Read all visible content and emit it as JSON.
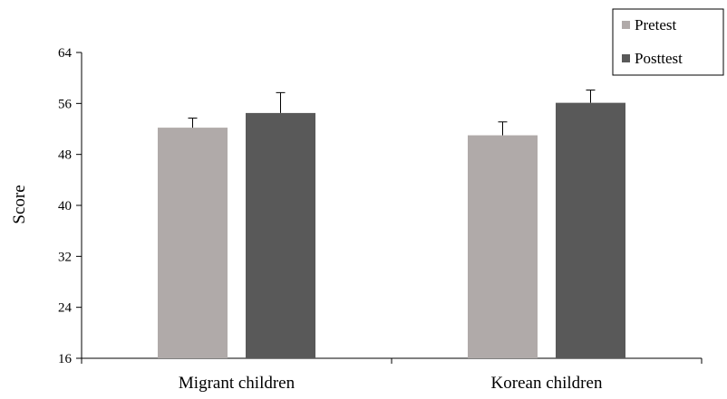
{
  "chart_data": {
    "type": "bar",
    "categories": [
      "Migrant children",
      "Korean children"
    ],
    "series": [
      {
        "name": "Pretest",
        "values": [
          52.2,
          51.0
        ],
        "errors": [
          1.5,
          2.1
        ],
        "color": "#b0aaa9"
      },
      {
        "name": "Posttest",
        "values": [
          54.5,
          56.1
        ],
        "errors": [
          3.2,
          2.0
        ],
        "color": "#595959"
      }
    ],
    "title": "",
    "xlabel": "",
    "ylabel": "Score",
    "ylim": [
      16,
      64
    ],
    "yticks": [
      "16",
      "24",
      "32",
      "40",
      "48",
      "56",
      "64"
    ],
    "grid": false,
    "error_bars": "upper",
    "legend_position": "top-right"
  }
}
